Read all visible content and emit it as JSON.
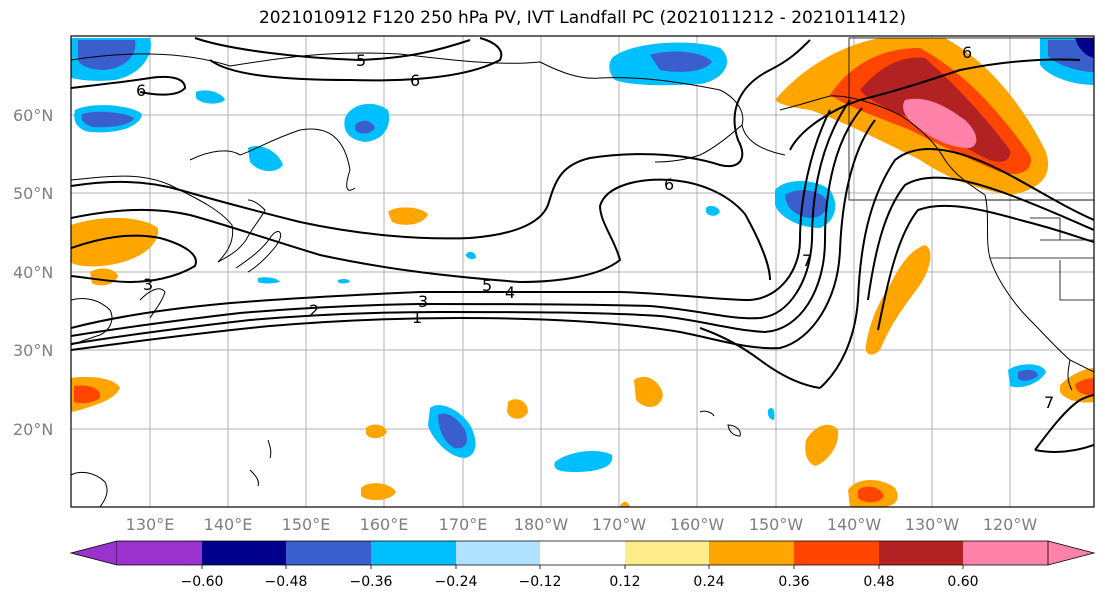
{
  "title": "2021010912 F120 250 hPa PV, IVT Landfall PC (2021011212 - 2021011412)",
  "map": {
    "lat_labels": [
      "60°N",
      "50°N",
      "40°N",
      "30°N",
      "20°N"
    ],
    "lon_labels": [
      "130°E",
      "140°E",
      "150°E",
      "160°E",
      "170°E",
      "180°W",
      "170°W",
      "160°W",
      "150°W",
      "140°W",
      "130°W",
      "120°W"
    ],
    "contour_labels": [
      "6",
      "5",
      "6",
      "6",
      "7",
      "3",
      "5",
      "4",
      "3",
      "2",
      "1",
      "6",
      "7"
    ]
  },
  "colorbar": {
    "ticks": [
      "−0.60",
      "−0.48",
      "−0.36",
      "−0.24",
      "−0.12",
      "0.12",
      "0.24",
      "0.36",
      "0.48",
      "0.60"
    ],
    "colors": [
      "#9a32cd",
      "#00008b",
      "#3a5fcd",
      "#00bfff",
      "#b0e2ff",
      "#ffffff",
      "#ffec8b",
      "#ffa500",
      "#ff4500",
      "#b22222",
      "#ff82ab"
    ]
  }
}
